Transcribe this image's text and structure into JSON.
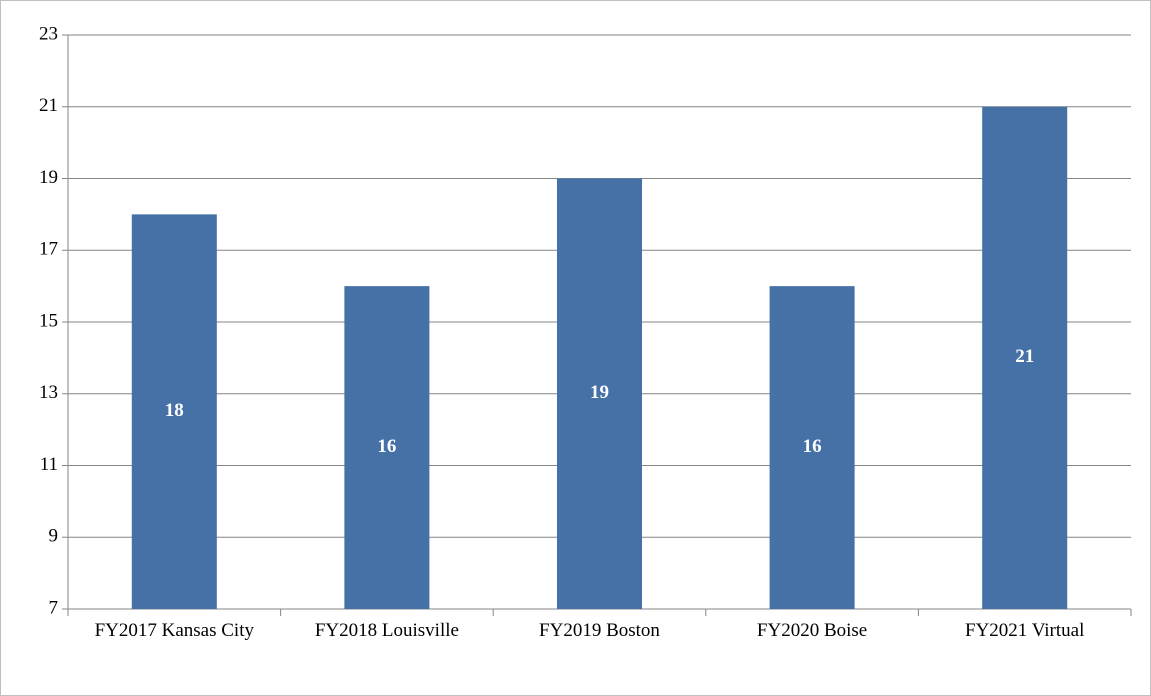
{
  "chart_data": {
    "type": "bar",
    "categories": [
      "FY2017 Kansas City",
      "FY2018 Louisville",
      "FY2019 Boston",
      "FY2020 Boise",
      "FY2021 Virtual"
    ],
    "values": [
      18,
      16,
      19,
      16,
      21
    ],
    "color": "#4571a7",
    "ylim": [
      7,
      23
    ],
    "yticks": [
      7,
      9,
      11,
      13,
      15,
      17,
      19,
      21,
      23
    ],
    "grid": true
  }
}
